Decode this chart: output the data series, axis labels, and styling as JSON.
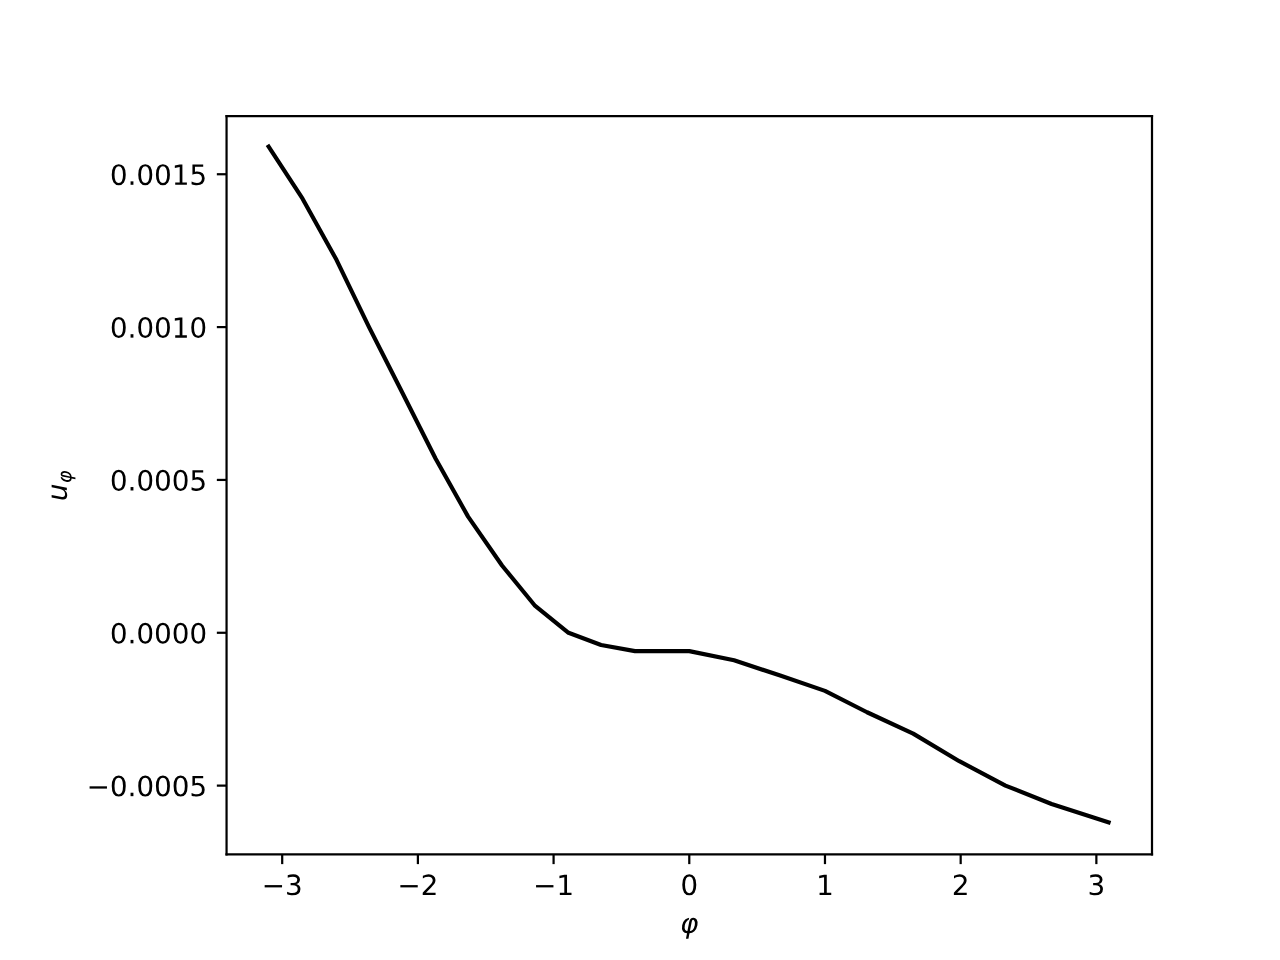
{
  "chart_data": {
    "type": "line",
    "xlabel": "φ",
    "ylabel": "u$_{φ}$",
    "x": [
      -3.1,
      -2.85,
      -2.6,
      -2.36,
      -2.12,
      -1.87,
      -1.63,
      -1.38,
      -1.14,
      -0.89,
      -0.65,
      -0.4,
      0.0,
      0.33,
      0.67,
      1.0,
      1.31,
      1.65,
      1.99,
      2.33,
      2.67,
      3.09
    ],
    "series": [
      {
        "color": "#000000",
        "values": [
          0.00159,
          0.00142,
          0.00122,
          0.001,
          0.00079,
          0.00057,
          0.00038,
          0.00022,
          9e-05,
          0.0,
          -4e-05,
          -6e-05,
          -6e-05,
          -9e-05,
          -0.00014,
          -0.00019,
          -0.00026,
          -0.00033,
          -0.00042,
          -0.0005,
          -0.00056,
          -0.00062
        ]
      }
    ],
    "xlim": [
      -3.41,
      3.41
    ],
    "xticks": [
      {
        "value": -3,
        "label": "−3"
      },
      {
        "value": -2,
        "label": "−2"
      },
      {
        "value": -1,
        "label": "−1"
      },
      0,
      1,
      2,
      3
    ],
    "ylim": [
      -0.000725,
      0.00169
    ],
    "yticks": [
      {
        "value": -0.0005,
        "label": "−0.0005"
      },
      {
        "value": 0.0,
        "label": "0.0000"
      },
      {
        "value": 0.0005,
        "label": "0.0005"
      },
      {
        "value": 0.001,
        "label": "0.0010"
      },
      {
        "value": 0.0015,
        "label": "0.0015"
      }
    ],
    "grid": false,
    "marker": "none",
    "line_style": "solid"
  }
}
